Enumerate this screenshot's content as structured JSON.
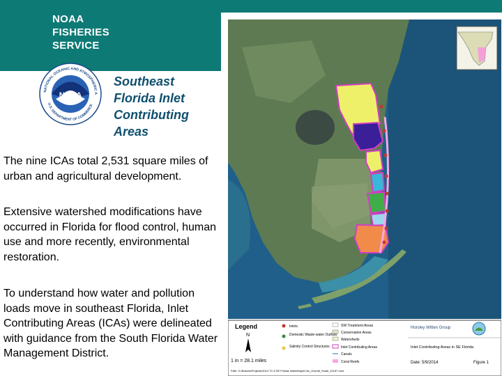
{
  "brand": {
    "line1": "NOAA",
    "line2": "FISHERIES",
    "line3": "SERVICE"
  },
  "logo": {
    "ring_text": "NATIONAL OCEANIC AND ATMOSPHERIC ADMINISTRATION",
    "bottom_text": "U.S. DEPARTMENT OF COMMERCE",
    "center_text": "NOAA"
  },
  "title": {
    "line1": "Southeast",
    "line2": "Florida Inlet",
    "line3": "Contributing",
    "line4": "Areas"
  },
  "paragraphs": [
    "The nine ICAs total 2,531 square miles of urban and agricultural development.",
    "Extensive watershed modifications have occurred in Florida for flood control, human use and more recently, environmental restoration.",
    "To understand how water and pollution loads move in southeast Florida, Inlet Contributing Areas (ICAs) were delineated with guidance from the South Florida Water Management District."
  ],
  "map": {
    "legend_title": "Legend",
    "legend_items": [
      "Inlets",
      "Domestic Waste-water Outfalls",
      "Salinity Control Structures",
      "SW Treatment Areas",
      "Conservation Areas",
      "Watersheds",
      "Inlet Contributing Areas",
      "Canals",
      "Coral Reefs"
    ],
    "scale": "1 in = 28.1 miles",
    "company": "Horsley Witten Group",
    "map_title": "Inlet Contributing Areas in SE Florida",
    "date": "Date: 5/9/2014",
    "figure": "Figure 1",
    "north": "N",
    "path_text": "Path: G:\\Brands\\Projects\\2013 TC 8 SE Florida Inlets\\Map\\ICAs_Overall_Small_10167.mxd",
    "colors": {
      "ica_yellow": "#eef06a",
      "ica_navy": "#3a1f99",
      "ica_orange": "#f08b4a",
      "ica_green": "#3fae49",
      "ica_cyan": "#38b7d8",
      "ica_outline": "#d23fc3",
      "ocean": "#1f5f8a",
      "land": "#5d7a52"
    }
  }
}
